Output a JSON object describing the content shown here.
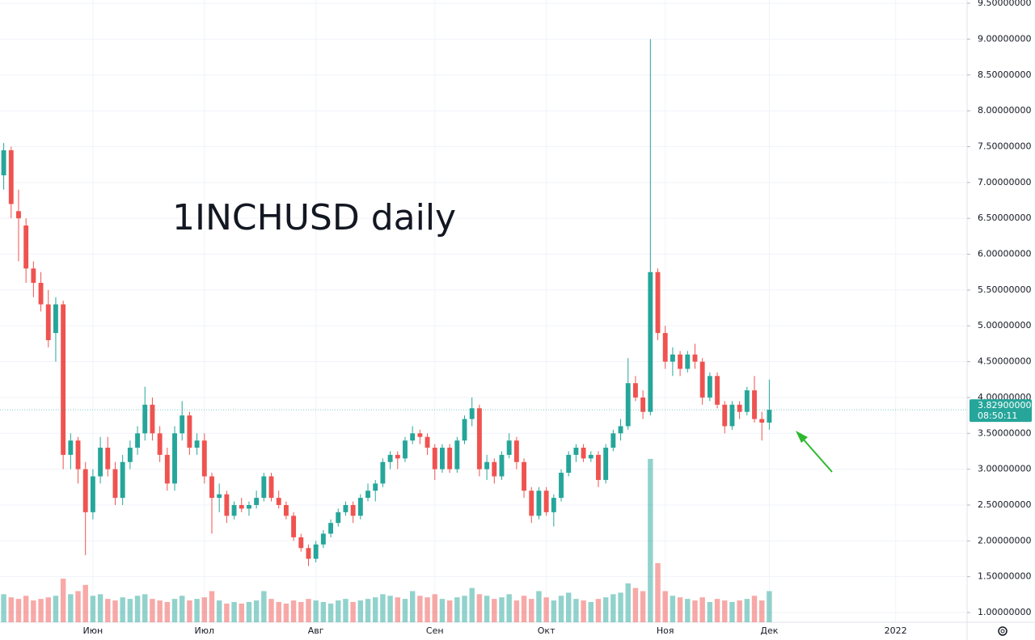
{
  "chart_data": {
    "type": "candlestick",
    "title": "1INCHUSD daily",
    "categories": [
      null,
      null,
      null,
      null,
      null,
      null,
      null,
      null,
      null,
      null,
      null,
      null,
      "Июн",
      null,
      null,
      null,
      null,
      null,
      null,
      null,
      null,
      null,
      null,
      null,
      null,
      null,
      null,
      "Июл",
      null,
      null,
      null,
      null,
      null,
      null,
      null,
      null,
      null,
      null,
      null,
      null,
      null,
      null,
      "Авг",
      null,
      null,
      null,
      null,
      null,
      null,
      null,
      null,
      null,
      null,
      null,
      null,
      null,
      null,
      null,
      "Сен",
      null,
      null,
      null,
      null,
      null,
      null,
      null,
      null,
      null,
      null,
      null,
      null,
      null,
      null,
      "Окт",
      null,
      null,
      null,
      null,
      null,
      null,
      null,
      null,
      null,
      null,
      null,
      null,
      null,
      null,
      null,
      "Ноя",
      null,
      null,
      null,
      null,
      null,
      null,
      null,
      null,
      null,
      null,
      null,
      null,
      null,
      "Дек",
      null,
      null,
      null,
      null,
      null,
      null,
      null,
      null,
      null,
      null,
      null,
      null,
      null,
      null,
      null,
      null,
      "2022",
      null,
      null,
      null,
      null,
      null,
      null,
      null,
      null,
      null
    ],
    "candles": [
      [
        7.1,
        7.55,
        6.9,
        7.45
      ],
      [
        7.45,
        7.5,
        6.5,
        6.7
      ],
      [
        6.6,
        6.9,
        5.9,
        6.5
      ],
      [
        6.4,
        6.5,
        5.6,
        5.8
      ],
      [
        5.8,
        5.9,
        5.4,
        5.6
      ],
      [
        5.6,
        5.75,
        5.2,
        5.3
      ],
      [
        5.3,
        5.5,
        4.7,
        4.8
      ],
      [
        4.9,
        5.4,
        4.5,
        5.3
      ],
      [
        5.3,
        5.35,
        3.0,
        3.2
      ],
      [
        3.2,
        3.5,
        3.0,
        3.4
      ],
      [
        3.4,
        3.45,
        2.8,
        3.0
      ],
      [
        3.0,
        3.1,
        1.8,
        2.4
      ],
      [
        2.4,
        3.0,
        2.3,
        2.9
      ],
      [
        2.9,
        3.45,
        2.8,
        3.3
      ],
      [
        3.3,
        3.45,
        2.9,
        3.0
      ],
      [
        3.0,
        3.1,
        2.5,
        2.6
      ],
      [
        2.6,
        3.2,
        2.5,
        3.1
      ],
      [
        3.1,
        3.4,
        3.0,
        3.3
      ],
      [
        3.3,
        3.6,
        3.2,
        3.5
      ],
      [
        3.5,
        4.15,
        3.4,
        3.9
      ],
      [
        3.9,
        4.0,
        3.4,
        3.5
      ],
      [
        3.5,
        3.6,
        3.1,
        3.2
      ],
      [
        3.2,
        3.3,
        2.7,
        2.8
      ],
      [
        2.8,
        3.6,
        2.7,
        3.5
      ],
      [
        3.5,
        3.95,
        3.4,
        3.75
      ],
      [
        3.75,
        3.8,
        3.2,
        3.3
      ],
      [
        3.3,
        3.5,
        3.2,
        3.4
      ],
      [
        3.4,
        3.5,
        2.8,
        2.9
      ],
      [
        2.9,
        2.95,
        2.1,
        2.6
      ],
      [
        2.6,
        2.8,
        2.4,
        2.65
      ],
      [
        2.65,
        2.7,
        2.25,
        2.35
      ],
      [
        2.35,
        2.55,
        2.3,
        2.5
      ],
      [
        2.5,
        2.6,
        2.4,
        2.45
      ],
      [
        2.45,
        2.55,
        2.35,
        2.5
      ],
      [
        2.5,
        2.7,
        2.45,
        2.6
      ],
      [
        2.6,
        2.95,
        2.55,
        2.9
      ],
      [
        2.9,
        2.95,
        2.55,
        2.6
      ],
      [
        2.6,
        2.7,
        2.45,
        2.5
      ],
      [
        2.5,
        2.55,
        2.3,
        2.35
      ],
      [
        2.35,
        2.4,
        2.0,
        2.05
      ],
      [
        2.05,
        2.1,
        1.85,
        1.9
      ],
      [
        1.9,
        1.95,
        1.65,
        1.75
      ],
      [
        1.75,
        2.0,
        1.7,
        1.95
      ],
      [
        1.95,
        2.15,
        1.9,
        2.1
      ],
      [
        2.1,
        2.3,
        2.05,
        2.25
      ],
      [
        2.25,
        2.45,
        2.2,
        2.4
      ],
      [
        2.4,
        2.55,
        2.35,
        2.5
      ],
      [
        2.5,
        2.55,
        2.25,
        2.35
      ],
      [
        2.35,
        2.65,
        2.3,
        2.6
      ],
      [
        2.6,
        2.8,
        2.55,
        2.7
      ],
      [
        2.7,
        2.85,
        2.55,
        2.8
      ],
      [
        2.8,
        3.15,
        2.75,
        3.1
      ],
      [
        3.1,
        3.25,
        3.0,
        3.2
      ],
      [
        3.2,
        3.25,
        3.0,
        3.15
      ],
      [
        3.15,
        3.45,
        3.1,
        3.4
      ],
      [
        3.4,
        3.6,
        3.35,
        3.5
      ],
      [
        3.5,
        3.55,
        3.35,
        3.45
      ],
      [
        3.45,
        3.5,
        3.2,
        3.3
      ],
      [
        3.3,
        3.35,
        2.85,
        3.0
      ],
      [
        3.0,
        3.35,
        2.95,
        3.3
      ],
      [
        3.3,
        3.35,
        2.95,
        3.0
      ],
      [
        3.0,
        3.45,
        2.95,
        3.4
      ],
      [
        3.4,
        3.75,
        3.35,
        3.7
      ],
      [
        3.7,
        4.0,
        3.6,
        3.85
      ],
      [
        3.85,
        3.9,
        2.9,
        3.0
      ],
      [
        3.0,
        3.2,
        2.85,
        3.1
      ],
      [
        3.1,
        3.15,
        2.8,
        2.9
      ],
      [
        2.9,
        3.25,
        2.85,
        3.2
      ],
      [
        3.2,
        3.5,
        3.15,
        3.4
      ],
      [
        3.4,
        3.45,
        3.0,
        3.1
      ],
      [
        3.1,
        3.15,
        2.6,
        2.7
      ],
      [
        2.7,
        2.75,
        2.25,
        2.35
      ],
      [
        2.35,
        2.75,
        2.3,
        2.7
      ],
      [
        2.7,
        2.75,
        2.35,
        2.4
      ],
      [
        2.4,
        2.65,
        2.2,
        2.6
      ],
      [
        2.6,
        3.0,
        2.55,
        2.95
      ],
      [
        2.95,
        3.25,
        2.9,
        3.2
      ],
      [
        3.2,
        3.35,
        3.1,
        3.3
      ],
      [
        3.3,
        3.35,
        3.1,
        3.15
      ],
      [
        3.15,
        3.25,
        3.1,
        3.2
      ],
      [
        3.2,
        3.25,
        2.75,
        2.85
      ],
      [
        2.85,
        3.35,
        2.8,
        3.3
      ],
      [
        3.3,
        3.55,
        3.25,
        3.5
      ],
      [
        3.5,
        3.7,
        3.4,
        3.6
      ],
      [
        3.6,
        4.55,
        3.55,
        4.2
      ],
      [
        4.2,
        4.3,
        3.95,
        4.0
      ],
      [
        4.0,
        4.1,
        3.7,
        3.8
      ],
      [
        3.8,
        9.0,
        3.75,
        5.75
      ],
      [
        5.75,
        5.8,
        4.8,
        4.9
      ],
      [
        4.9,
        5.0,
        4.4,
        4.5
      ],
      [
        4.5,
        4.7,
        4.3,
        4.6
      ],
      [
        4.6,
        4.65,
        4.3,
        4.4
      ],
      [
        4.4,
        4.65,
        4.35,
        4.6
      ],
      [
        4.6,
        4.75,
        4.4,
        4.5
      ],
      [
        4.5,
        4.55,
        3.9,
        4.0
      ],
      [
        4.0,
        4.35,
        3.95,
        4.3
      ],
      [
        4.3,
        4.35,
        3.85,
        3.9
      ],
      [
        3.9,
        3.95,
        3.5,
        3.6
      ],
      [
        3.6,
        3.95,
        3.55,
        3.9
      ],
      [
        3.9,
        3.95,
        3.7,
        3.8
      ],
      [
        3.8,
        4.15,
        3.75,
        4.1
      ],
      [
        4.1,
        4.3,
        3.65,
        3.7
      ],
      [
        3.7,
        3.8,
        3.4,
        3.65
      ],
      [
        3.65,
        4.25,
        3.55,
        3.829
      ],
      null,
      null,
      null,
      null,
      null,
      null,
      null,
      null,
      null,
      null,
      null,
      null,
      null,
      null,
      null,
      null,
      null,
      null,
      null,
      null,
      null,
      null,
      null,
      null,
      null,
      null
    ],
    "volume": [
      18,
      16,
      15,
      17,
      14,
      15,
      16,
      17,
      28,
      18,
      20,
      24,
      17,
      18,
      15,
      14,
      16,
      15,
      17,
      18,
      15,
      14,
      13,
      15,
      17,
      14,
      15,
      16,
      20,
      14,
      12,
      13,
      12,
      13,
      14,
      20,
      15,
      13,
      12,
      14,
      13,
      15,
      14,
      13,
      12,
      14,
      15,
      13,
      14,
      15,
      16,
      18,
      17,
      16,
      15,
      20,
      17,
      16,
      18,
      15,
      14,
      16,
      17,
      22,
      18,
      17,
      15,
      16,
      18,
      14,
      17,
      15,
      20,
      16,
      14,
      17,
      19,
      15,
      14,
      13,
      15,
      16,
      18,
      19,
      25,
      22,
      20,
      105,
      38,
      20,
      17,
      16,
      15,
      14,
      16,
      13,
      15,
      14,
      13,
      14,
      15,
      17,
      14,
      20,
      null,
      null,
      null,
      null,
      null,
      null,
      null,
      null,
      null,
      null,
      null,
      null,
      null,
      null,
      null,
      null,
      null,
      null,
      null,
      null,
      null,
      null,
      null,
      null,
      null,
      null
    ],
    "up_color": "#26a69a",
    "down_color": "#ef5350",
    "ylim": [
      0.865,
      9.546
    ],
    "yticks": [
      {
        "value": 1.0,
        "label": "1.00000000"
      },
      {
        "value": 1.5,
        "label": "1.50000000"
      },
      {
        "value": 2.0,
        "label": "2.00000000"
      },
      {
        "value": 2.5,
        "label": "2.50000000"
      },
      {
        "value": 3.0,
        "label": "3.00000000"
      },
      {
        "value": 3.5,
        "label": "3.50000000"
      },
      {
        "value": 4.0,
        "label": "4.00000000"
      },
      {
        "value": 4.5,
        "label": "4.50000000"
      },
      {
        "value": 5.0,
        "label": "5.00000000"
      },
      {
        "value": 5.5,
        "label": "5.50000000"
      },
      {
        "value": 6.0,
        "label": "6.00000000"
      },
      {
        "value": 6.5,
        "label": "6.50000000"
      },
      {
        "value": 7.0,
        "label": "7.00000000"
      },
      {
        "value": 7.5,
        "label": "7.50000000"
      },
      {
        "value": 8.0,
        "label": "8.00000000"
      },
      {
        "value": 8.5,
        "label": "8.50000000"
      },
      {
        "value": 9.0,
        "label": "9.00000000"
      },
      {
        "value": 9.5,
        "label": "9.50000000"
      }
    ],
    "y2lim": [
      0,
      400
    ],
    "grid": true,
    "last_price": {
      "value": 3.829,
      "label": "3.82900000"
    },
    "countdown": "08:50:11"
  }
}
